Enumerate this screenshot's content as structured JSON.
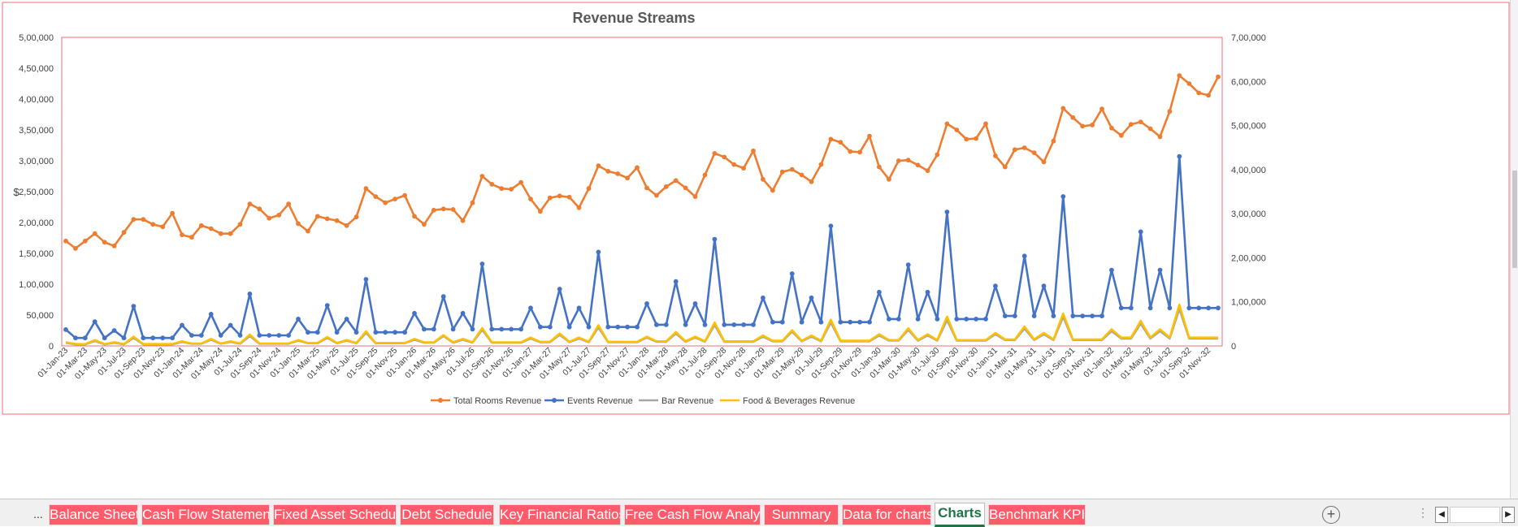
{
  "chart_data": {
    "type": "line",
    "title": "Revenue Streams",
    "ylabel": "$",
    "ylim": [
      0,
      500000
    ],
    "y2lim": [
      0,
      700000
    ],
    "y_ticks": [
      "0",
      "50,000",
      "1,00,000",
      "1,50,000",
      "2,00,000",
      "2,50,000",
      "3,00,000",
      "3,50,000",
      "4,00,000",
      "4,50,000",
      "5,00,000"
    ],
    "y2_ticks": [
      "0",
      "1,00,000",
      "2,00,000",
      "3,00,000",
      "4,00,000",
      "5,00,000",
      "6,00,000",
      "7,00,000"
    ],
    "x_tick_labels": [
      "01-Jan-23",
      "01-Mar-23",
      "01-May-23",
      "01-Jul-23",
      "01-Sep-23",
      "01-Nov-23",
      "01-Jan-24",
      "01-Mar-24",
      "01-May-24",
      "01-Jul-24",
      "01-Sep-24",
      "01-Nov-24",
      "01-Jan-25",
      "01-Mar-25",
      "01-May-25",
      "01-Jul-25",
      "01-Sep-25",
      "01-Nov-25",
      "01-Jan-26",
      "01-Mar-26",
      "01-May-26",
      "01-Jul-26",
      "01-Sep-26",
      "01-Nov-26",
      "01-Jan-27",
      "01-Mar-27",
      "01-May-27",
      "01-Jul-27",
      "01-Sep-27",
      "01-Nov-27",
      "01-Jan-28",
      "01-Mar-28",
      "01-May-28",
      "01-Jul-28",
      "01-Sep-28",
      "01-Nov-28",
      "01-Jan-29",
      "01-Mar-29",
      "01-May-29",
      "01-Jul-29",
      "01-Sep-29",
      "01-Nov-29",
      "01-Jan-30",
      "01-Mar-30",
      "01-May-30",
      "01-Jul-30",
      "01-Sep-30",
      "01-Nov-30",
      "01-Jan-31",
      "01-Mar-31",
      "01-May-31",
      "01-Jul-31",
      "01-Sep-31",
      "01-Nov-31",
      "01-Jan-32",
      "01-Mar-32",
      "01-May-32",
      "01-Jul-32",
      "01-Sep-32",
      "01-Nov-32"
    ],
    "x_start": "Jan-2023",
    "x_end": "Dec-2032",
    "legend_position": "bottom",
    "grid": false,
    "series": [
      {
        "name": "Total Rooms Revenue",
        "axis": "primary",
        "color": "#ed7d31",
        "marker": true,
        "values": [
          170000,
          158000,
          170000,
          182000,
          168000,
          162000,
          184000,
          205000,
          205000,
          197000,
          193000,
          215000,
          180000,
          176000,
          195000,
          190000,
          182000,
          182000,
          197000,
          230000,
          222000,
          207000,
          212000,
          230000,
          198000,
          186000,
          210000,
          206000,
          203000,
          195000,
          209000,
          255000,
          242000,
          232000,
          238000,
          244000,
          210000,
          197000,
          220000,
          222000,
          221000,
          203000,
          232000,
          275000,
          262000,
          255000,
          254000,
          265000,
          238000,
          218000,
          240000,
          243000,
          241000,
          224000,
          255000,
          292000,
          283000,
          279000,
          272000,
          289000,
          256000,
          244000,
          258000,
          268000,
          256000,
          242000,
          277000,
          312000,
          306000,
          294000,
          288000,
          316000,
          270000,
          252000,
          282000,
          286000,
          277000,
          266000,
          294000,
          335000,
          330000,
          315000,
          314000,
          340000,
          290000,
          270000,
          300000,
          301000,
          293000,
          284000,
          310000,
          360000,
          350000,
          335000,
          336000,
          360000,
          308000,
          290000,
          318000,
          321000,
          313000,
          298000,
          332000,
          385000,
          370000,
          356000,
          358000,
          384000,
          353000,
          341000,
          359000,
          363000,
          352000,
          339000,
          380000,
          438000,
          425000,
          410000,
          406000,
          436000
        ]
      },
      {
        "name": "Events Revenue",
        "axis": "secondary",
        "color": "#4472c4",
        "marker": true,
        "values": [
          37000,
          18000,
          18000,
          55000,
          18000,
          35000,
          18000,
          90000,
          18000,
          18000,
          18000,
          18000,
          47000,
          24000,
          24000,
          72000,
          24000,
          47000,
          24000,
          118000,
          24000,
          24000,
          24000,
          24000,
          61000,
          31000,
          31000,
          92000,
          31000,
          61000,
          31000,
          151000,
          31000,
          31000,
          31000,
          31000,
          74000,
          38000,
          38000,
          112000,
          38000,
          74000,
          38000,
          186000,
          38000,
          38000,
          38000,
          38000,
          86000,
          43000,
          43000,
          129000,
          43000,
          86000,
          43000,
          213000,
          43000,
          43000,
          43000,
          43000,
          96000,
          48000,
          48000,
          146000,
          48000,
          96000,
          48000,
          242000,
          48000,
          48000,
          48000,
          48000,
          109000,
          54000,
          54000,
          164000,
          54000,
          109000,
          54000,
          272000,
          54000,
          54000,
          54000,
          54000,
          122000,
          61000,
          61000,
          184000,
          61000,
          122000,
          61000,
          304000,
          61000,
          61000,
          61000,
          61000,
          136000,
          68000,
          68000,
          204000,
          68000,
          136000,
          68000,
          339000,
          68000,
          68000,
          68000,
          68000,
          172000,
          86000,
          86000,
          259000,
          86000,
          172000,
          86000,
          430000,
          86000,
          86000,
          86000,
          86000
        ]
      },
      {
        "name": "Bar Revenue",
        "axis": "primary",
        "color": "#a5a5a5",
        "marker": false,
        "values": [
          5000,
          2500,
          2500,
          8000,
          2500,
          5000,
          2500,
          13000,
          2500,
          2500,
          2500,
          2500,
          6500,
          3500,
          3500,
          10000,
          3500,
          6500,
          3500,
          16000,
          3500,
          3500,
          3500,
          3500,
          8500,
          4300,
          4300,
          13000,
          4300,
          8500,
          4300,
          21000,
          4300,
          4300,
          4300,
          4300,
          10000,
          5300,
          5300,
          16000,
          5300,
          10000,
          5300,
          26000,
          5300,
          5300,
          5300,
          5300,
          12000,
          6000,
          6000,
          18000,
          6000,
          12000,
          6000,
          30000,
          6000,
          6000,
          6000,
          6000,
          13500,
          6700,
          6700,
          20000,
          6700,
          13500,
          6700,
          34000,
          6700,
          6700,
          6700,
          6700,
          15000,
          7500,
          7500,
          23000,
          7500,
          15000,
          7500,
          38000,
          7500,
          7500,
          7500,
          7500,
          17000,
          8500,
          8500,
          26000,
          8500,
          17000,
          8500,
          42000,
          8500,
          8500,
          8500,
          8500,
          19000,
          9500,
          9500,
          28000,
          9500,
          19000,
          9500,
          47000,
          9500,
          9500,
          9500,
          9500,
          24000,
          12000,
          12000,
          36000,
          12000,
          24000,
          12000,
          60000,
          12000,
          12000,
          12000,
          12000
        ]
      },
      {
        "name": "Food & Beverages Revenue",
        "axis": "primary",
        "color": "#ffc000",
        "marker": false,
        "values": [
          6000,
          3000,
          3000,
          9500,
          3000,
          6000,
          3000,
          15000,
          3000,
          3000,
          3000,
          3000,
          7500,
          4000,
          4000,
          11500,
          4000,
          7500,
          4000,
          18500,
          4000,
          4000,
          4000,
          4000,
          9500,
          4800,
          4800,
          14500,
          4800,
          9500,
          4800,
          23500,
          4800,
          4800,
          4800,
          4800,
          11500,
          5900,
          5900,
          17500,
          5900,
          11500,
          5900,
          29000,
          5900,
          5900,
          5900,
          5900,
          13500,
          6700,
          6700,
          20000,
          6700,
          13500,
          6700,
          33500,
          6700,
          6700,
          6700,
          6700,
          15000,
          7500,
          7500,
          22500,
          7500,
          15000,
          7500,
          38000,
          7500,
          7500,
          7500,
          7500,
          17000,
          8400,
          8400,
          25500,
          8400,
          17000,
          8400,
          42500,
          8400,
          8400,
          8400,
          8400,
          19000,
          9500,
          9500,
          28500,
          9500,
          19000,
          9500,
          47500,
          9500,
          9500,
          9500,
          9500,
          21000,
          10500,
          10500,
          31500,
          10500,
          21000,
          10500,
          52500,
          10500,
          10500,
          10500,
          10500,
          27000,
          13500,
          13500,
          40500,
          13500,
          27000,
          13500,
          67000,
          13500,
          13500,
          13500,
          13500
        ]
      }
    ]
  },
  "tabs": {
    "lead": "...",
    "items": [
      "Balance Sheet",
      "Cash Flow Statement",
      "Fixed Asset Schedule",
      "Debt Schedule",
      "Key Financial Ratios",
      "Free Cash Flow Analysis",
      "Summary",
      "Data for charts",
      "Charts",
      "Benchmark KPIs"
    ],
    "active": "Charts",
    "add_label": "+"
  },
  "colors": {
    "tab_bg": "#ff5b6b",
    "active_tab_text": "#217346",
    "border": "#e03c4a"
  }
}
